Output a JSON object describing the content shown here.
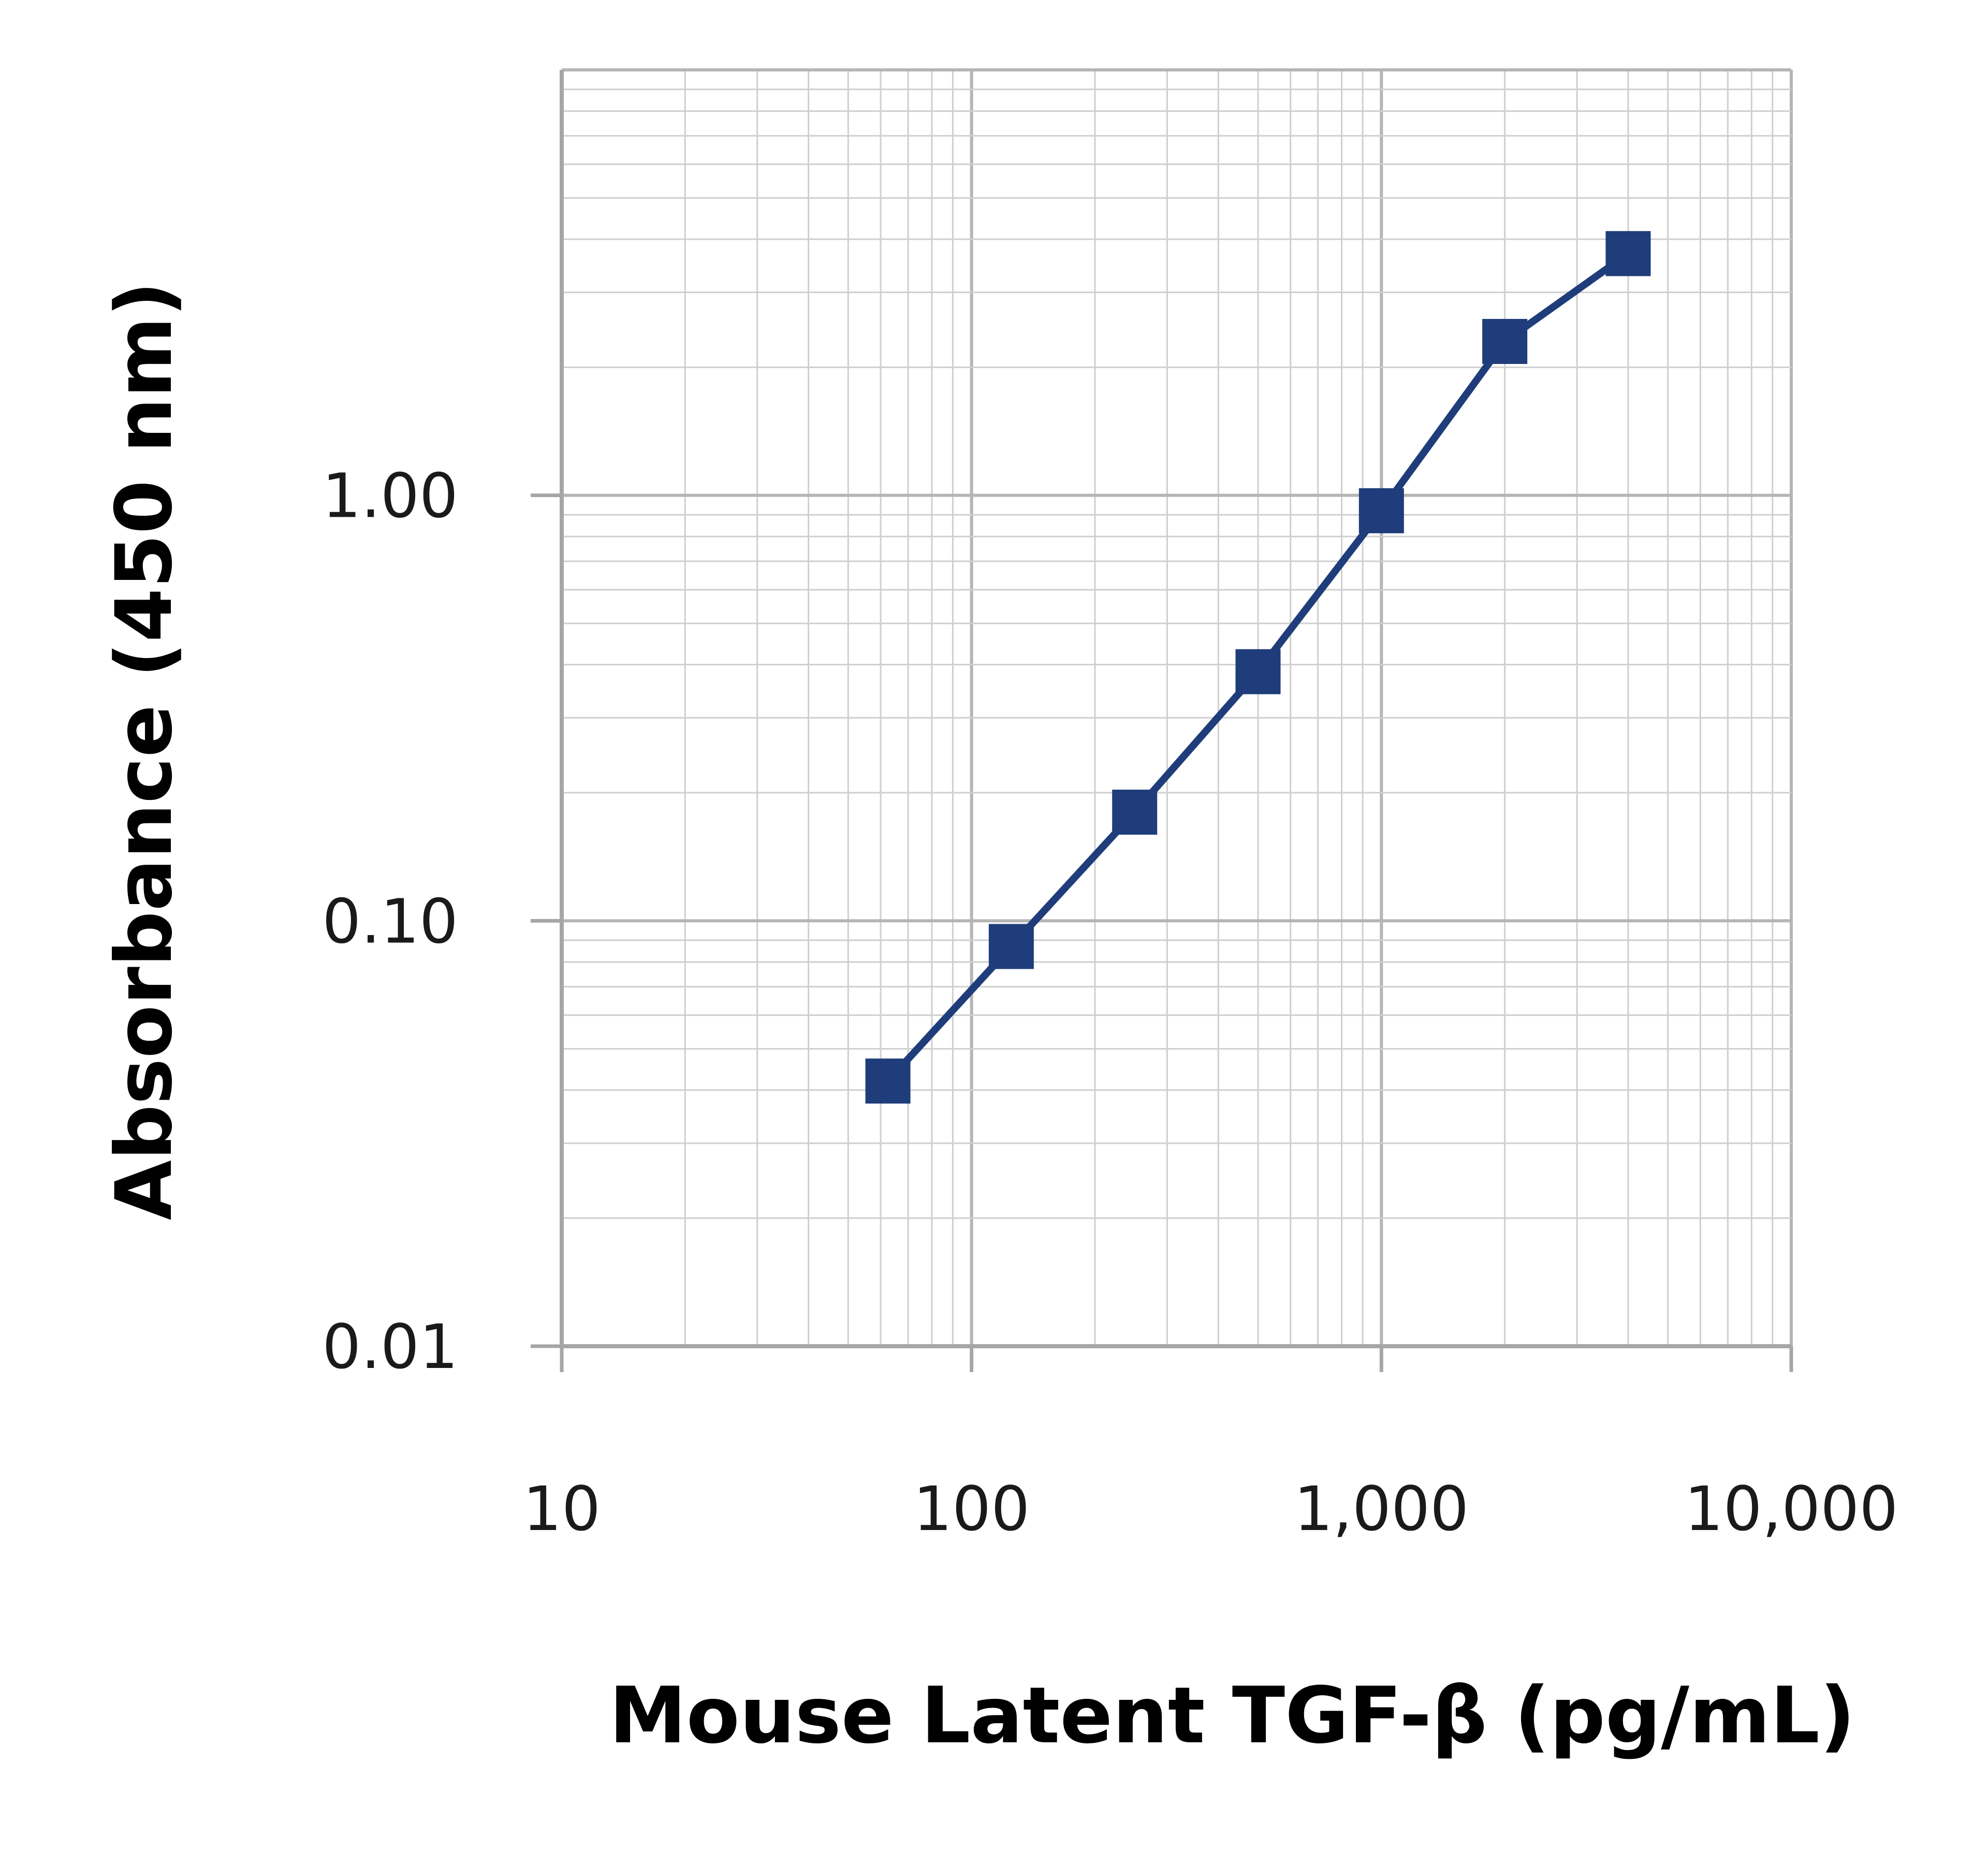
{
  "chart_data": {
    "type": "line",
    "xlabel": "Mouse Latent TGF-β (pg/mL)",
    "ylabel": "Absorbance (450 nm)",
    "x_scale": "log",
    "y_scale": "log",
    "xlim": [
      10,
      10000
    ],
    "ylim": [
      0.01,
      10
    ],
    "x_ticks": [
      {
        "value": 10,
        "label": "10"
      },
      {
        "value": 100,
        "label": "100"
      },
      {
        "value": 1000,
        "label": "1,000"
      },
      {
        "value": 10000,
        "label": "10,000"
      }
    ],
    "y_ticks": [
      {
        "value": 0.01,
        "label": "0.01"
      },
      {
        "value": 0.1,
        "label": "0.10"
      },
      {
        "value": 1,
        "label": "1.00"
      }
    ],
    "grid": true,
    "legend": "none",
    "series": [
      {
        "color": "#1f3d7a",
        "marker": "square",
        "x": [
          62.5,
          125,
          250,
          500,
          1000,
          2000,
          4000
        ],
        "y": [
          0.042,
          0.087,
          0.18,
          0.385,
          0.92,
          2.3,
          3.7
        ]
      }
    ]
  }
}
